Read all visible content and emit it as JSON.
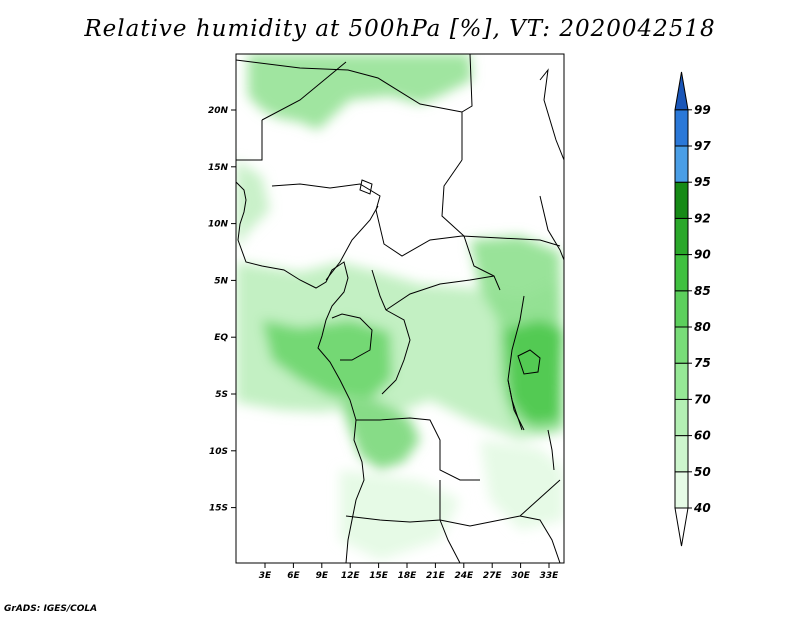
{
  "title": "Relative humidity at 500hPa [%], VT: 2020042518",
  "credit": "GrADS: IGES/COLA",
  "map": {
    "lon_labels": [
      "3E",
      "6E",
      "9E",
      "12E",
      "15E",
      "18E",
      "21E",
      "24E",
      "27E",
      "30E",
      "33E"
    ],
    "lat_labels": [
      "20N",
      "15N",
      "10N",
      "5N",
      "EQ",
      "5S",
      "10S",
      "15S"
    ]
  },
  "colorbar": {
    "levels": [
      "40",
      "50",
      "60",
      "70",
      "75",
      "80",
      "85",
      "90",
      "92",
      "95",
      "97",
      "99"
    ],
    "colors": [
      "#ffffff",
      "#e6fbe6",
      "#cdf5cd",
      "#b3efb3",
      "#96e896",
      "#78dc78",
      "#5ccf5c",
      "#40c040",
      "#2aa82a",
      "#168a16",
      "#4a9ee6",
      "#2a78d8",
      "#1a56b8"
    ]
  }
}
